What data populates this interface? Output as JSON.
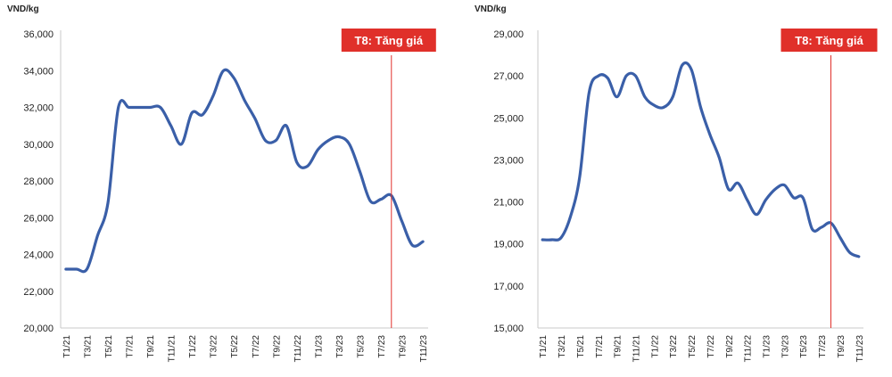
{
  "chart_data": [
    {
      "type": "line",
      "ylabel": "VND/kg",
      "ylim": [
        20000,
        36000
      ],
      "yticks": [
        "20,000",
        "22,000",
        "24,000",
        "26,000",
        "28,000",
        "30,000",
        "32,000",
        "34,000",
        "36,000"
      ],
      "ytick_values": [
        20000,
        22000,
        24000,
        26000,
        28000,
        30000,
        32000,
        34000,
        36000
      ],
      "xtick_labels": [
        "T1/21",
        "T3/21",
        "T5/21",
        "T7/21",
        "T9/21",
        "T11/21",
        "T1/22",
        "T3/22",
        "T5/22",
        "T7/22",
        "T9/22",
        "T11/22",
        "T1/23",
        "T3/23",
        "T5/23",
        "T7/23",
        "T9/23",
        "T11/23"
      ],
      "x": [
        "T1/21",
        "T2/21",
        "T3/21",
        "T4/21",
        "T5/21",
        "T6/21",
        "T7/21",
        "T8/21",
        "T9/21",
        "T10/21",
        "T11/21",
        "T12/21",
        "T1/22",
        "T2/22",
        "T3/22",
        "T4/22",
        "T5/22",
        "T6/22",
        "T7/22",
        "T8/22",
        "T9/22",
        "T10/22",
        "T11/22",
        "T12/22",
        "T1/23",
        "T2/23",
        "T3/23",
        "T4/23",
        "T5/23",
        "T6/23",
        "T7/23",
        "T8/23",
        "T9/23",
        "T10/23",
        "T11/23"
      ],
      "values": [
        23200,
        23200,
        23200,
        25000,
        26800,
        32000,
        32000,
        32000,
        32000,
        32000,
        31000,
        30000,
        31700,
        31600,
        32600,
        34000,
        33600,
        32400,
        31400,
        30200,
        30200,
        31000,
        29000,
        28800,
        29700,
        30200,
        30400,
        30000,
        28500,
        26900,
        27000,
        27200,
        25800,
        24500,
        24700
      ],
      "series_color": "#3a5fa8",
      "annotation": {
        "label": "T8: Tăng giá",
        "at": "T8/23",
        "color": "#e0302a"
      },
      "grid": false
    },
    {
      "type": "line",
      "ylabel": "VND/kg",
      "ylim": [
        15000,
        29000
      ],
      "yticks": [
        "15,000",
        "17,000",
        "19,000",
        "21,000",
        "23,000",
        "25,000",
        "27,000",
        "29,000"
      ],
      "ytick_values": [
        15000,
        17000,
        19000,
        21000,
        23000,
        25000,
        27000,
        29000
      ],
      "xtick_labels": [
        "T1/21",
        "T3/21",
        "T5/21",
        "T7/21",
        "T9/21",
        "T11/21",
        "T1/22",
        "T3/22",
        "T5/22",
        "T7/22",
        "T9/22",
        "T11/22",
        "T1/23",
        "T3/23",
        "T5/23",
        "T7/23",
        "T9/23",
        "T11/23"
      ],
      "x": [
        "T1/21",
        "T2/21",
        "T3/21",
        "T4/21",
        "T5/21",
        "T6/21",
        "T7/21",
        "T8/21",
        "T9/21",
        "T10/21",
        "T11/21",
        "T12/21",
        "T1/22",
        "T2/22",
        "T3/22",
        "T4/22",
        "T5/22",
        "T6/22",
        "T7/22",
        "T8/22",
        "T9/22",
        "T10/22",
        "T11/22",
        "T12/22",
        "T1/23",
        "T2/23",
        "T3/23",
        "T4/23",
        "T5/23",
        "T6/23",
        "T7/23",
        "T8/23",
        "T9/23",
        "T10/23",
        "T11/23"
      ],
      "values": [
        19200,
        19200,
        19300,
        20300,
        22200,
        26200,
        27000,
        26900,
        26000,
        27000,
        27000,
        26000,
        25600,
        25500,
        26000,
        27500,
        27300,
        25500,
        24200,
        23100,
        21600,
        21900,
        21100,
        20400,
        21100,
        21600,
        21800,
        21200,
        21200,
        19700,
        19800,
        20000,
        19300,
        18600,
        18400
      ],
      "series_color": "#3a5fa8",
      "annotation": {
        "label": "T8: Tăng giá",
        "at": "T8/23",
        "color": "#e0302a"
      },
      "grid": false
    }
  ]
}
